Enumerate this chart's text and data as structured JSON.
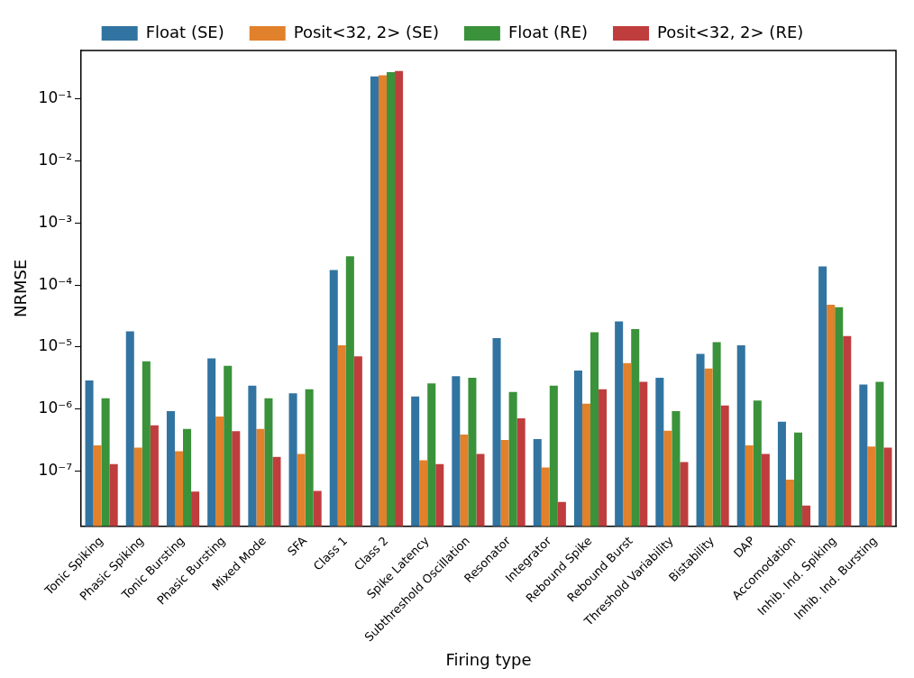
{
  "chart_data": {
    "type": "bar",
    "xlabel": "Firing type",
    "ylabel": "NRMSE",
    "log": "y",
    "legend": "top",
    "grid": false,
    "categories": [
      "Tonic Spiking",
      "Phasic Spiking",
      "Tonic Bursting",
      "Phasic Bursting",
      "Mixed Mode",
      "SFA",
      "Class 1",
      "Class 2",
      "Spike Latency",
      "Subthreshold Oscillation",
      "Resonator",
      "Integrator",
      "Rebound Spike",
      "Rebound Burst",
      "Threshold Variability",
      "Bistability",
      "DAP",
      "Accomodation",
      "Inhib. Ind. Spiking",
      "Inhib. Ind. Bursting"
    ],
    "ylim": [
      1.3e-08,
      0.6
    ],
    "yticks": [
      {
        "value": 1e-07,
        "label": "10⁻⁷"
      },
      {
        "value": 1e-06,
        "label": "10⁻⁶"
      },
      {
        "value": 1e-05,
        "label": "10⁻⁵"
      },
      {
        "value": 0.0001,
        "label": "10⁻⁴"
      },
      {
        "value": 0.001,
        "label": "10⁻³"
      },
      {
        "value": 0.01,
        "label": "10⁻²"
      },
      {
        "value": 0.1,
        "label": "10⁻¹"
      }
    ],
    "series": [
      {
        "name": "Float (SE)",
        "color": "#3274a1",
        "values": [
          2.9e-06,
          1.8e-05,
          9.3e-07,
          6.6e-06,
          2.4e-06,
          1.8e-06,
          0.000174,
          0.23,
          1.6e-06,
          3.4e-06,
          1.4e-05,
          3.3e-07,
          4.2e-06,
          2.6e-05,
          3.2e-06,
          7.8e-06,
          1.07e-05,
          6.3e-07,
          0.0002,
          2.5e-06
        ]
      },
      {
        "name": "Posit<32, 2> (SE)",
        "color": "#e1812c",
        "values": [
          2.6e-07,
          2.4e-07,
          2.1e-07,
          7.6e-07,
          4.8e-07,
          1.9e-07,
          1.07e-05,
          0.24,
          1.5e-07,
          3.9e-07,
          3.2e-07,
          1.15e-07,
          1.23e-06,
          5.5e-06,
          4.5e-07,
          4.5e-06,
          2.6e-07,
          7.3e-08,
          4.8e-05,
          2.5e-07
        ]
      },
      {
        "name": "Float (RE)",
        "color": "#3a923a",
        "values": [
          1.5e-06,
          5.9e-06,
          4.8e-07,
          5e-06,
          1.5e-06,
          2.1e-06,
          0.00029,
          0.27,
          2.6e-06,
          3.2e-06,
          1.9e-06,
          2.4e-06,
          1.74e-05,
          1.95e-05,
          9.3e-07,
          1.2e-05,
          1.38e-06,
          4.2e-07,
          4.4e-05,
          2.75e-06
        ]
      },
      {
        "name": "Posit<32, 2> (RE)",
        "color": "#c03d3e",
        "values": [
          1.3e-07,
          5.5e-07,
          4.7e-08,
          4.4e-07,
          1.7e-07,
          4.8e-08,
          7.1e-06,
          0.28,
          1.3e-07,
          1.9e-07,
          7.1e-07,
          3.2e-08,
          2.1e-06,
          2.75e-06,
          1.4e-07,
          1.15e-06,
          1.9e-07,
          2.8e-08,
          1.5e-05,
          2.4e-07
        ]
      }
    ]
  }
}
